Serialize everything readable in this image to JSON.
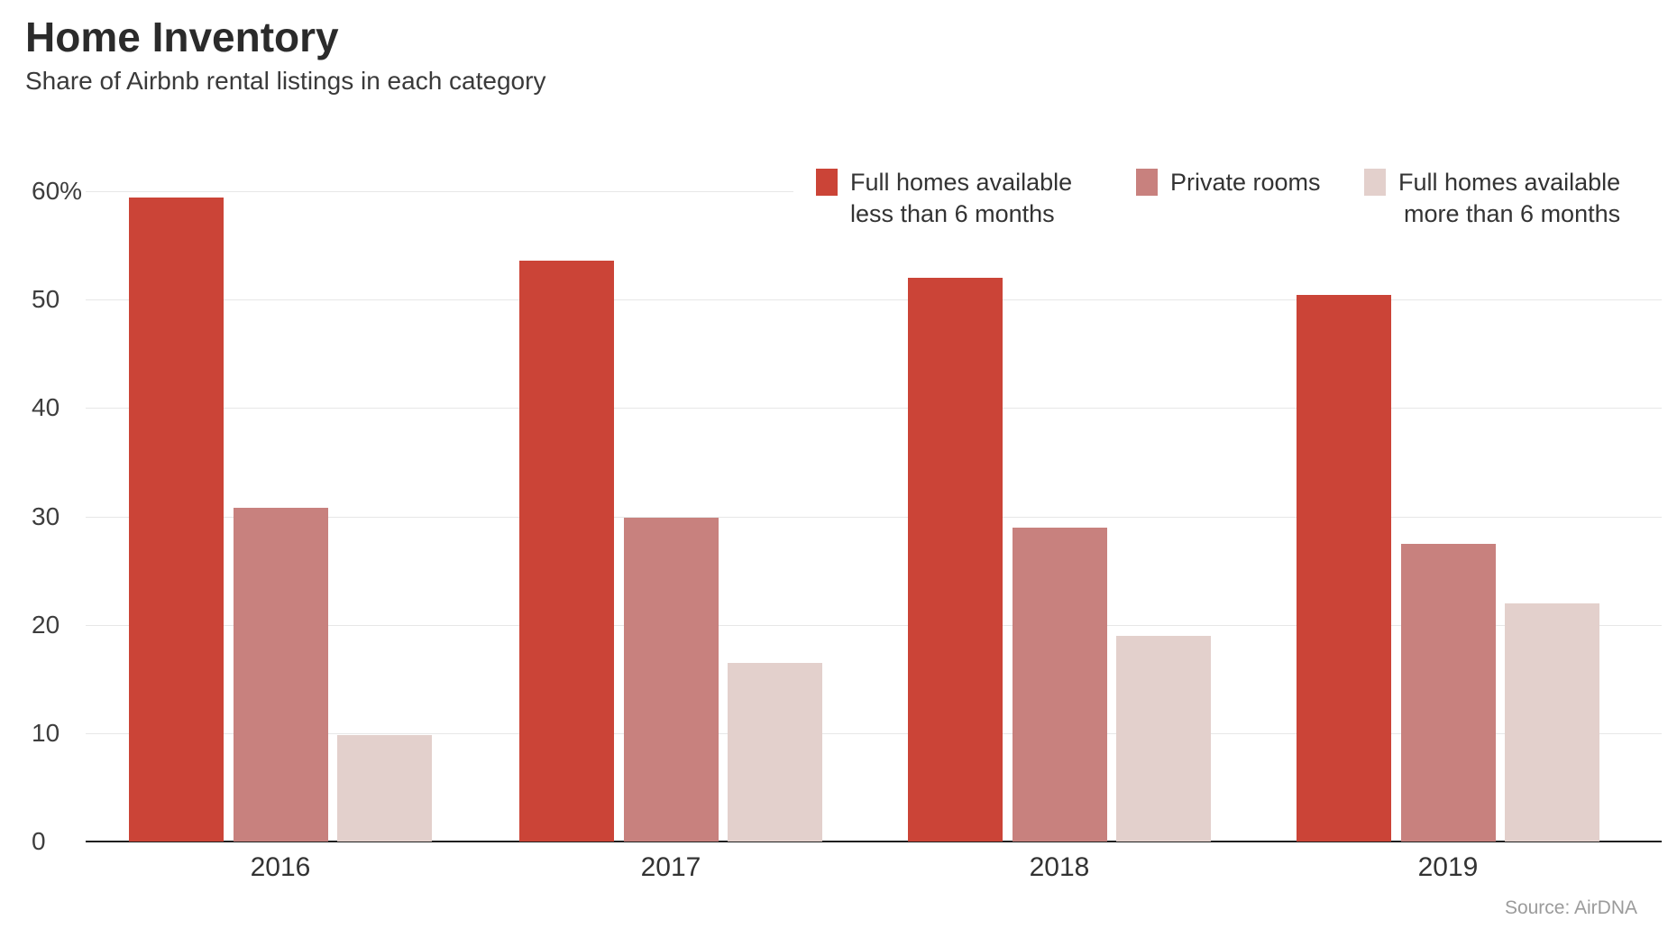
{
  "title": "Home Inventory",
  "subtitle": "Share of Airbnb rental listings in each category",
  "source": "Source: AirDNA",
  "colors": {
    "series_red": "#cb4437",
    "series_rose": "#c8817e",
    "series_pink": "#e3d0cc",
    "gridline": "#e7e7e7",
    "axis_baseline": "#1f1f1f",
    "text_dark": "#2b2b2b",
    "text_muted": "#9b9b9b"
  },
  "chart_data": {
    "type": "bar",
    "title": "Home Inventory",
    "subtitle": "Share of Airbnb rental listings in each category",
    "categories": [
      "2016",
      "2017",
      "2018",
      "2019"
    ],
    "series": [
      {
        "name": "Full homes available less than 6 months",
        "label_lines": [
          "Full homes available",
          "less than 6 months"
        ],
        "color": "#cb4437",
        "values": [
          59.4,
          53.6,
          52.0,
          50.4
        ]
      },
      {
        "name": "Private rooms",
        "label_lines": [
          "Private rooms"
        ],
        "color": "#c8817e",
        "values": [
          30.8,
          29.9,
          29.0,
          27.5
        ]
      },
      {
        "name": "Full homes available more than 6 months",
        "label_lines": [
          "Full homes available",
          "more than 6 months"
        ],
        "color": "#e3d0cc",
        "values": [
          9.8,
          16.5,
          19.0,
          22.0
        ]
      }
    ],
    "yticks": [
      0,
      10,
      20,
      30,
      40,
      50,
      60
    ],
    "ytick_labels": [
      "0",
      "10",
      "20",
      "30",
      "40",
      "50",
      "60%"
    ],
    "ylabel": "",
    "xlabel": "",
    "ylim": [
      0,
      62
    ],
    "grid": true,
    "legend_position": "top-right",
    "source": "Source: AirDNA"
  }
}
